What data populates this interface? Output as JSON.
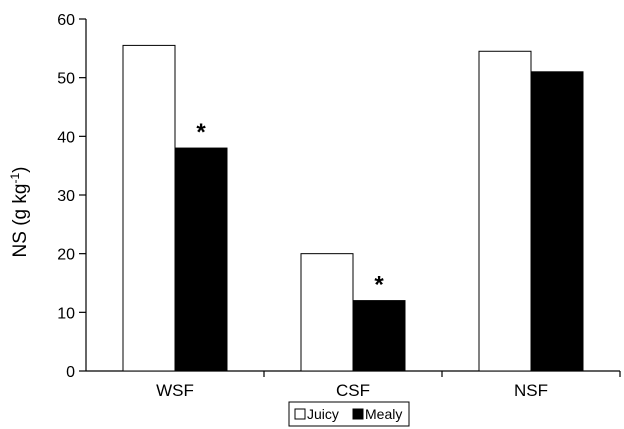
{
  "chart_data": {
    "type": "bar",
    "title": "",
    "xlabel": "",
    "ylabel": "NS (g kg",
    "ylabel_superscript": "-1",
    "ylabel_close": ")",
    "categories": [
      "WSF",
      "CSF",
      "NSF"
    ],
    "series": [
      {
        "name": "Juicy",
        "values": [
          55.5,
          20,
          54.5
        ],
        "color": "#ffffff"
      },
      {
        "name": "Mealy",
        "values": [
          38,
          12,
          51
        ],
        "color": "#000000"
      }
    ],
    "ylim": [
      0,
      60
    ],
    "yticks": [
      0,
      10,
      20,
      30,
      40,
      50,
      60
    ],
    "grid": false,
    "legend": {
      "placement": "bottom-center"
    },
    "annotations": [
      {
        "text": "*",
        "category": "WSF",
        "series": "Mealy"
      },
      {
        "text": "*",
        "category": "CSF",
        "series": "Mealy"
      }
    ]
  }
}
